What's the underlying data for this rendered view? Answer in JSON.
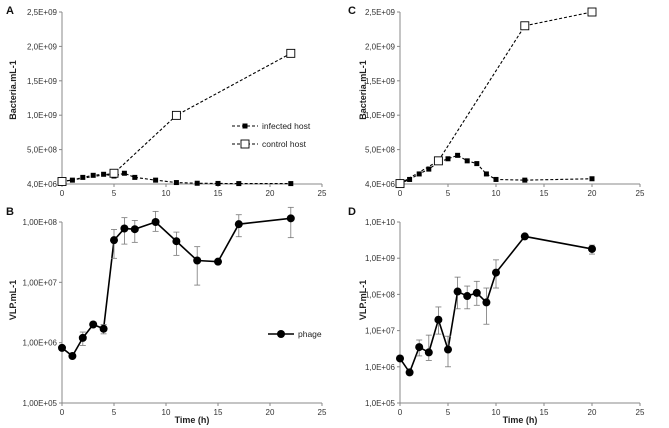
{
  "chart_data": [
    {
      "panel": "A",
      "type": "line",
      "yscale": "linear",
      "ylabel": "Bacteria.mL-1",
      "xlim": [
        0,
        25
      ],
      "ylim": [
        4000000,
        2500000000
      ],
      "x_ticks": [
        "0",
        "5",
        "10",
        "15",
        "20",
        "25"
      ],
      "y_ticks": [
        "4,0E+06",
        "5,0E+08",
        "1,0E+09",
        "1,5E+09",
        "2,0E+09",
        "2,5E+09"
      ],
      "legend_position": "center-right",
      "series": [
        {
          "name": "infected host",
          "style": "dashed-filled-square",
          "x": [
            0,
            1,
            2,
            3,
            4,
            5,
            6,
            7,
            9,
            11,
            13,
            15,
            17,
            22
          ],
          "y": [
            40000000,
            60000000,
            100000000,
            130000000,
            145000000,
            120000000,
            160000000,
            100000000,
            60000000,
            25000000,
            15000000,
            12000000,
            10000000,
            10000000
          ]
        },
        {
          "name": "control host",
          "style": "dashed-open-square",
          "x": [
            0,
            5,
            11,
            22
          ],
          "y": [
            40000000,
            160000000,
            1000000000,
            1900000000
          ]
        }
      ]
    },
    {
      "panel": "B",
      "type": "line",
      "yscale": "log",
      "ylabel": "VLP.mL-1",
      "xlabel": "Time (h)",
      "xlim": [
        0,
        25
      ],
      "ylim": [
        100000,
        100000000
      ],
      "x_ticks": [
        "0",
        "5",
        "10",
        "15",
        "20",
        "25"
      ],
      "y_ticks": [
        "1,00E+05",
        "1,00E+06",
        "1,00E+07",
        "1,00E+08"
      ],
      "legend_position": "lower-right",
      "series": [
        {
          "name": "phage",
          "style": "solid-filled-circle",
          "x": [
            0,
            1,
            2,
            3,
            4,
            5,
            6,
            7,
            9,
            11,
            13,
            15,
            17,
            22
          ],
          "y": [
            820000,
            600000,
            1200000,
            2000000,
            1700000,
            50000000,
            78000000,
            76000000,
            100000000,
            48000000,
            23000000,
            22000000,
            92000000,
            115000000
          ],
          "err_low": [
            0,
            0,
            300000,
            0,
            300000,
            25000000,
            35000000,
            30000000,
            30000000,
            20000000,
            14000000,
            0,
            35000000,
            60000000
          ],
          "err_high": [
            0,
            0,
            300000,
            0,
            300000,
            25000000,
            40000000,
            30000000,
            50000000,
            20000000,
            16000000,
            0,
            40000000,
            60000000
          ]
        }
      ]
    },
    {
      "panel": "C",
      "type": "line",
      "yscale": "linear",
      "ylabel": "Bacteria.mL-1",
      "xlim": [
        0,
        25
      ],
      "ylim": [
        4000000,
        2500000000
      ],
      "x_ticks": [
        "0",
        "5",
        "10",
        "15",
        "20",
        "25"
      ],
      "y_ticks": [
        "4,0E+06",
        "5,0E+08",
        "1,0E+09",
        "1,5E+09",
        "2,0E+09",
        "2,5E+09"
      ],
      "series": [
        {
          "name": "infected host",
          "style": "dashed-filled-square",
          "x": [
            0,
            1,
            2,
            3,
            4,
            5,
            6,
            7,
            8,
            9,
            10,
            13,
            20
          ],
          "y": [
            10000000,
            70000000,
            150000000,
            220000000,
            320000000,
            370000000,
            420000000,
            340000000,
            300000000,
            150000000,
            70000000,
            60000000,
            80000000
          ]
        },
        {
          "name": "control host",
          "style": "dashed-open-square",
          "x": [
            0,
            4,
            13,
            20
          ],
          "y": [
            10000000,
            340000000,
            2300000000,
            2500000000
          ]
        }
      ]
    },
    {
      "panel": "D",
      "type": "line",
      "yscale": "log",
      "ylabel": "VLP.mL-1",
      "xlabel": "Time (h)",
      "xlim": [
        0,
        25
      ],
      "ylim": [
        100000,
        10000000000
      ],
      "x_ticks": [
        "0",
        "5",
        "10",
        "15",
        "20",
        "25"
      ],
      "y_ticks": [
        "1,0E+05",
        "1,0E+06",
        "1,0E+07",
        "1,0E+08",
        "1,0E+09",
        "1,0E+10"
      ],
      "series": [
        {
          "name": "phage",
          "style": "solid-filled-circle",
          "x": [
            0,
            1,
            2,
            3,
            4,
            5,
            6,
            7,
            8,
            9,
            10,
            13,
            20
          ],
          "y": [
            1700000,
            700000,
            3500000,
            2500000,
            20000000,
            3000000,
            120000000,
            90000000,
            110000000,
            60000000,
            400000000,
            4000000000,
            1800000000
          ],
          "err_low": [
            0,
            0,
            1500000,
            1000000,
            12000000,
            2000000,
            80000000,
            50000000,
            60000000,
            45000000,
            250000000,
            0,
            500000000
          ],
          "err_high": [
            0,
            0,
            2000000,
            5000000,
            25000000,
            4000000,
            180000000,
            80000000,
            120000000,
            90000000,
            500000000,
            0,
            500000000
          ]
        }
      ]
    }
  ]
}
